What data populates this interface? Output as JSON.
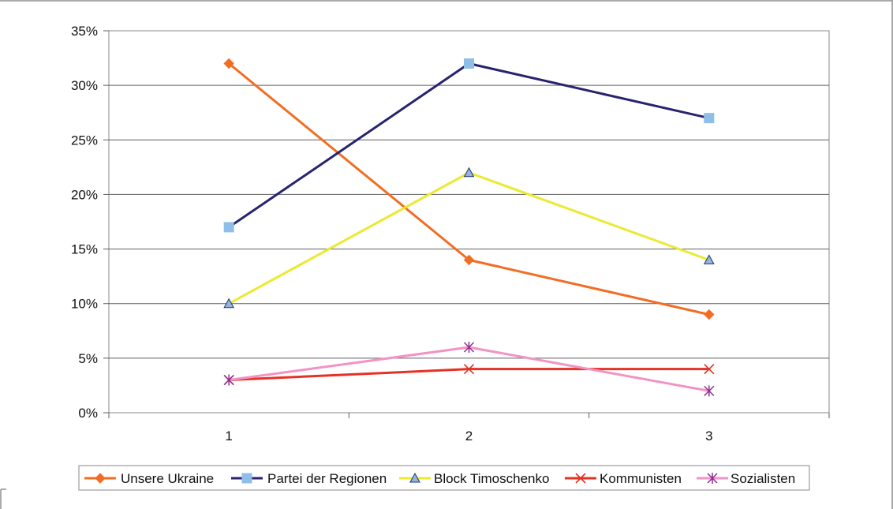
{
  "chart_data": {
    "type": "line",
    "title": "",
    "xlabel": "",
    "ylabel": "",
    "categories": [
      "1",
      "2",
      "3"
    ],
    "ylim": [
      0,
      35
    ],
    "y_ticks": [
      0,
      5,
      10,
      15,
      20,
      25,
      30,
      35
    ],
    "y_tick_labels": [
      "0%",
      "5%",
      "10%",
      "15%",
      "20%",
      "25%",
      "30%",
      "35%"
    ],
    "grid": "horizontal",
    "legend_position": "bottom",
    "series": [
      {
        "name": "Unsere Ukraine",
        "values": [
          32,
          14,
          9
        ],
        "color": "#f26d22",
        "marker": "diamond",
        "marker_color": "#f26d22"
      },
      {
        "name": "Partei der Regionen",
        "values": [
          17,
          32,
          27
        ],
        "color": "#27236f",
        "marker": "square",
        "marker_color": "#8fbfe8"
      },
      {
        "name": "Block Timoschenko",
        "values": [
          10,
          22,
          14
        ],
        "color": "#eaea30",
        "marker": "triangle",
        "marker_color": "#96b4de"
      },
      {
        "name": "Kommunisten",
        "values": [
          3,
          4,
          4
        ],
        "color": "#e53224",
        "marker": "x",
        "marker_color": "#e53224"
      },
      {
        "name": "Sozialisten",
        "values": [
          3,
          6,
          2
        ],
        "color": "#f293c3",
        "marker": "asterisk",
        "marker_color": "#8b2e91"
      }
    ]
  }
}
